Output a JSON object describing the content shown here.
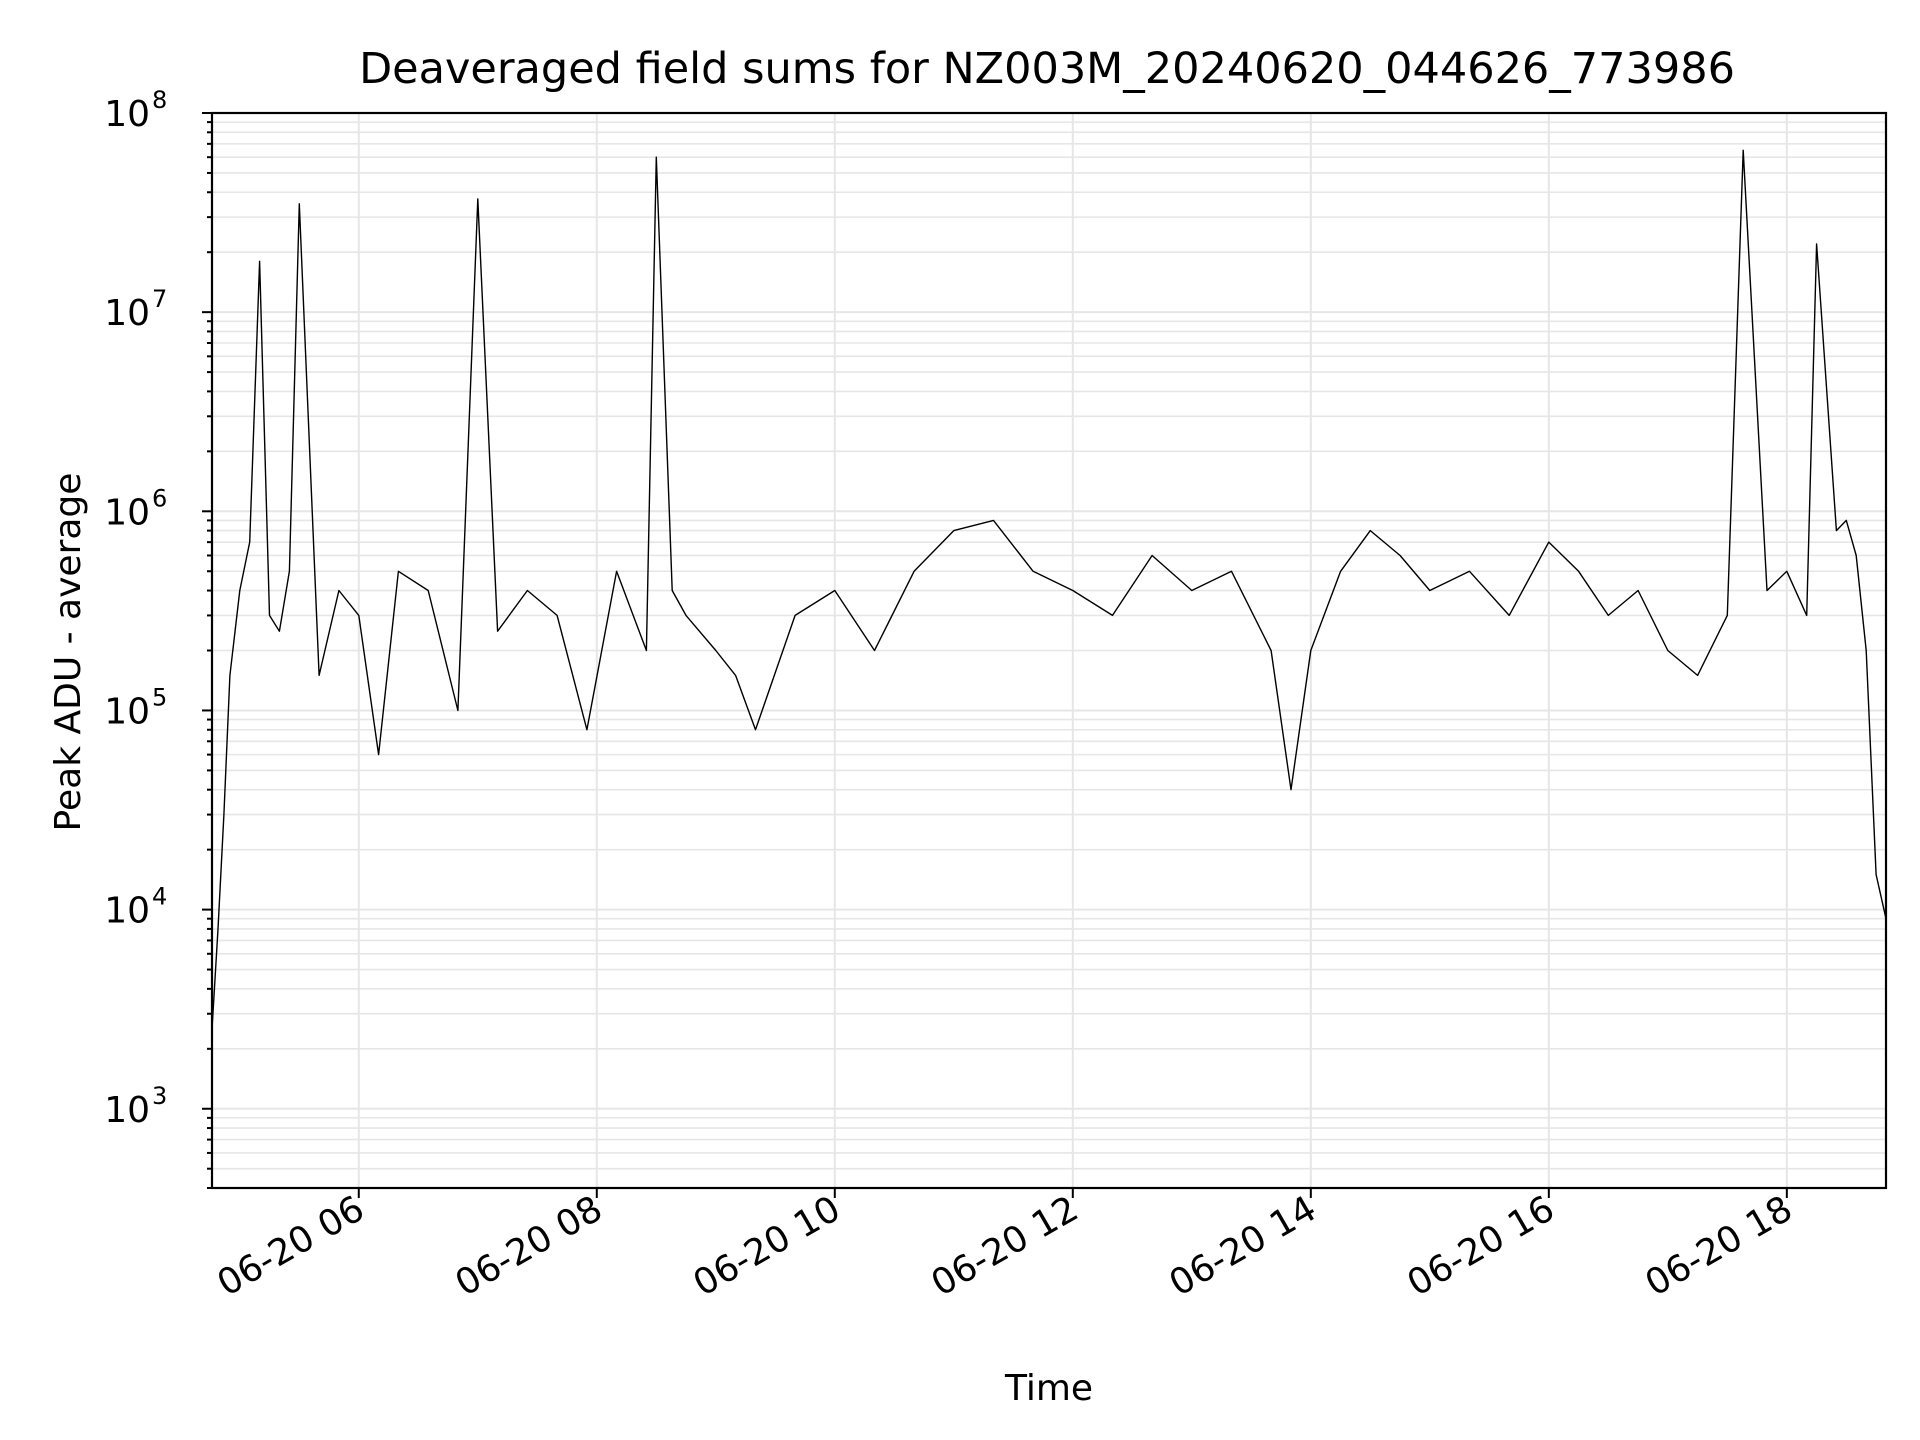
{
  "chart_data": {
    "type": "line",
    "title": "Deaveraged field sums for NZ003M_20240620_044626_773986",
    "xlabel": "Time",
    "ylabel": "Peak ADU - average",
    "y_scale": "log",
    "xlim": [
      "2024-06-20 04:46",
      "2024-06-20 18:50"
    ],
    "ylim": [
      400,
      100000000
    ],
    "x_tick_labels": [
      "06-20 06",
      "06-20 08",
      "06-20 10",
      "06-20 12",
      "06-20 14",
      "06-20 16",
      "06-20 18"
    ],
    "x_tick_rotation": 30,
    "y_tick_labels": [
      {
        "base": "10",
        "exp": "3"
      },
      {
        "base": "10",
        "exp": "4"
      },
      {
        "base": "10",
        "exp": "5"
      },
      {
        "base": "10",
        "exp": "6"
      },
      {
        "base": "10",
        "exp": "7"
      },
      {
        "base": "10",
        "exp": "8"
      }
    ],
    "y_tick_values": [
      1000,
      10000,
      100000,
      1000000,
      10000000,
      100000000
    ],
    "grid": true,
    "line_color": "#000000",
    "grid_color": "#e6e6e6",
    "series": [
      {
        "x": [
          "2024-06-20 04:46",
          "2024-06-20 04:49",
          "2024-06-20 04:52",
          "2024-06-20 04:55",
          "2024-06-20 05:00",
          "2024-06-20 05:05",
          "2024-06-20 05:10",
          "2024-06-20 05:15",
          "2024-06-20 05:20",
          "2024-06-20 05:25",
          "2024-06-20 05:30",
          "2024-06-20 05:40",
          "2024-06-20 05:50",
          "2024-06-20 06:00",
          "2024-06-20 06:10",
          "2024-06-20 06:20",
          "2024-06-20 06:35",
          "2024-06-20 06:50",
          "2024-06-20 07:00",
          "2024-06-20 07:10",
          "2024-06-20 07:25",
          "2024-06-20 07:40",
          "2024-06-20 07:55",
          "2024-06-20 08:10",
          "2024-06-20 08:25",
          "2024-06-20 08:30",
          "2024-06-20 08:38",
          "2024-06-20 08:45",
          "2024-06-20 09:00",
          "2024-06-20 09:10",
          "2024-06-20 09:20",
          "2024-06-20 09:40",
          "2024-06-20 10:00",
          "2024-06-20 10:20",
          "2024-06-20 10:40",
          "2024-06-20 11:00",
          "2024-06-20 11:20",
          "2024-06-20 11:40",
          "2024-06-20 12:00",
          "2024-06-20 12:20",
          "2024-06-20 12:40",
          "2024-06-20 13:00",
          "2024-06-20 13:20",
          "2024-06-20 13:40",
          "2024-06-20 13:50",
          "2024-06-20 14:00",
          "2024-06-20 14:15",
          "2024-06-20 14:30",
          "2024-06-20 14:45",
          "2024-06-20 15:00",
          "2024-06-20 15:20",
          "2024-06-20 15:40",
          "2024-06-20 16:00",
          "2024-06-20 16:15",
          "2024-06-20 16:30",
          "2024-06-20 16:45",
          "2024-06-20 17:00",
          "2024-06-20 17:15",
          "2024-06-20 17:30",
          "2024-06-20 17:38",
          "2024-06-20 17:50",
          "2024-06-20 18:00",
          "2024-06-20 18:10",
          "2024-06-20 18:15",
          "2024-06-20 18:25",
          "2024-06-20 18:30",
          "2024-06-20 18:35",
          "2024-06-20 18:40",
          "2024-06-20 18:45",
          "2024-06-20 18:50"
        ],
        "y": [
          2500,
          8000,
          30000,
          150000,
          400000,
          700000,
          18000000,
          300000,
          250000,
          500000,
          35000000,
          150000,
          400000,
          300000,
          60000,
          500000,
          400000,
          100000,
          37000000,
          250000,
          400000,
          300000,
          80000,
          500000,
          200000,
          60000000,
          400000,
          300000,
          200000,
          150000,
          80000,
          300000,
          400000,
          200000,
          500000,
          800000,
          900000,
          500000,
          400000,
          300000,
          600000,
          400000,
          500000,
          200000,
          40000,
          200000,
          500000,
          800000,
          600000,
          400000,
          500000,
          300000,
          700000,
          500000,
          300000,
          400000,
          200000,
          150000,
          300000,
          65000000,
          400000,
          500000,
          300000,
          22000000,
          800000,
          900000,
          600000,
          200000,
          15000,
          9000
        ]
      }
    ]
  }
}
